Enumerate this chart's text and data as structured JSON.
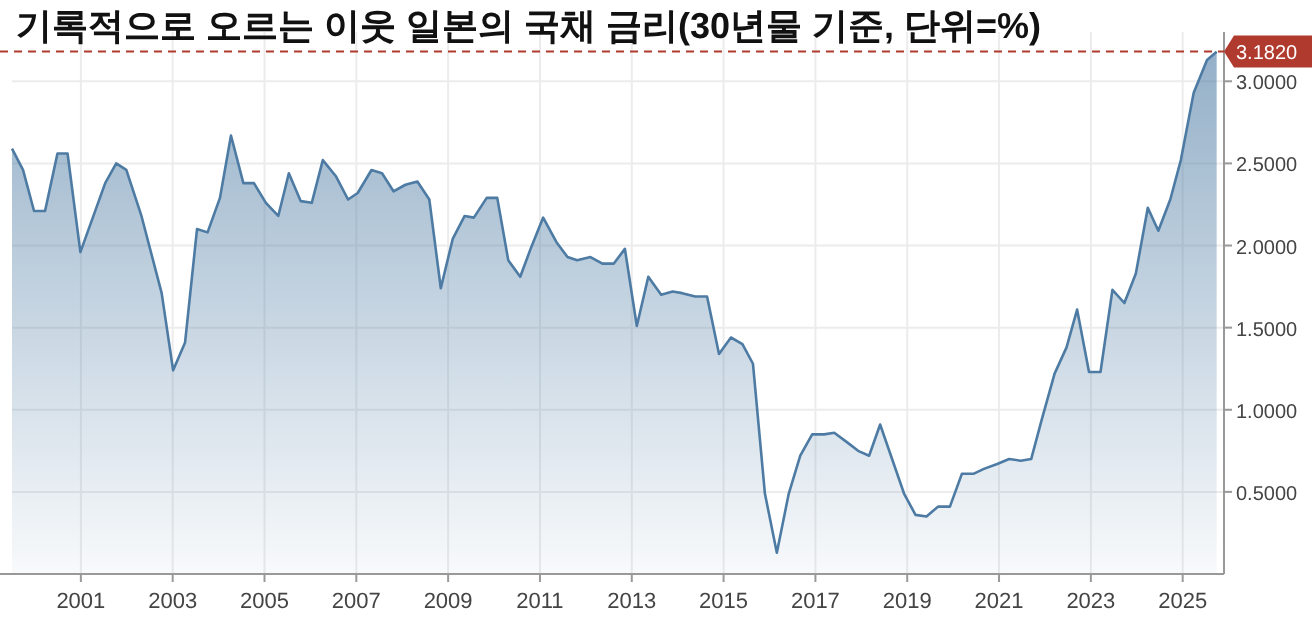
{
  "chart_data": {
    "type": "area",
    "title": "기록적으로 오르는 이웃 일본의 국채 금리(30년물 기준, 단위=%)",
    "x": [
      1999.5,
      1999.74,
      1999.98,
      2000.22,
      2000.49,
      2000.71,
      2000.99,
      2001.53,
      2001.77,
      2001.99,
      2002.32,
      2002.76,
      2003.01,
      2003.27,
      2003.53,
      2003.76,
      2004.03,
      2004.27,
      2004.54,
      2004.77,
      2005.03,
      2005.3,
      2005.53,
      2005.79,
      2006.03,
      2006.27,
      2006.56,
      2006.82,
      2007.03,
      2007.33,
      2007.56,
      2007.81,
      2008.07,
      2008.33,
      2008.59,
      2008.84,
      2009.1,
      2009.36,
      2009.56,
      2009.84,
      2010.07,
      2010.31,
      2010.57,
      2010.81,
      2011.07,
      2011.36,
      2011.6,
      2011.81,
      2012.1,
      2012.36,
      2012.61,
      2012.85,
      2013.11,
      2013.36,
      2013.64,
      2013.89,
      2014.1,
      2014.38,
      2014.64,
      2014.9,
      2015.16,
      2015.41,
      2015.64,
      2015.9,
      2016.16,
      2016.42,
      2016.67,
      2016.93,
      2017.19,
      2017.41,
      2017.7,
      2017.93,
      2018.17,
      2018.41,
      2018.67,
      2018.93,
      2019.18,
      2019.42,
      2019.67,
      2019.93,
      2020.19,
      2020.44,
      2020.67,
      2020.96,
      2021.22,
      2021.47,
      2021.7,
      2021.93,
      2022.21,
      2022.47,
      2022.7,
      2022.96,
      2023.21,
      2023.47,
      2023.73,
      2023.98,
      2024.24,
      2024.47,
      2024.73,
      2024.96,
      2025.24,
      2025.53,
      2025.74
    ],
    "series": [
      {
        "color": "#4d7ba3",
        "values": [
          2.59,
          2.46,
          2.21,
          2.21,
          2.56,
          2.56,
          1.96,
          2.38,
          2.5,
          2.46,
          2.18,
          1.71,
          1.24,
          1.41,
          2.1,
          2.08,
          2.29,
          2.67,
          2.38,
          2.38,
          2.26,
          2.18,
          2.44,
          2.27,
          2.26,
          2.52,
          2.42,
          2.28,
          2.32,
          2.46,
          2.44,
          2.33,
          2.37,
          2.39,
          2.28,
          1.74,
          2.04,
          2.18,
          2.17,
          2.29,
          2.29,
          1.91,
          1.81,
          1.99,
          2.17,
          2.02,
          1.93,
          1.91,
          1.93,
          1.89,
          1.89,
          1.98,
          1.51,
          1.81,
          1.7,
          1.72,
          1.71,
          1.69,
          1.69,
          1.34,
          1.44,
          1.4,
          1.28,
          0.49,
          0.13,
          0.49,
          0.72,
          0.85,
          0.85,
          0.86,
          0.8,
          0.75,
          0.72,
          0.91,
          0.7,
          0.49,
          0.36,
          0.35,
          0.41,
          0.41,
          0.61,
          0.61,
          0.64,
          0.67,
          0.7,
          0.69,
          0.7,
          0.94,
          1.22,
          1.38,
          1.61,
          1.23,
          1.23,
          1.73,
          1.65,
          1.83,
          2.23,
          2.09,
          2.28,
          2.52,
          2.93,
          3.13,
          3.18
        ]
      }
    ],
    "xlim": [
      1999.5,
      2025.9
    ],
    "xticks": [
      2001,
      2003,
      2005,
      2007,
      2009,
      2011,
      2013,
      2015,
      2017,
      2019,
      2021,
      2023,
      2025
    ],
    "ylim": [
      0,
      3.3
    ],
    "yticks": [
      {
        "value": 0.5,
        "label": "0.5000"
      },
      {
        "value": 1,
        "label": "1.0000"
      },
      {
        "value": 1.5,
        "label": "1.5000"
      },
      {
        "value": 2,
        "label": "2.0000"
      },
      {
        "value": 2.5,
        "label": "2.5000"
      },
      {
        "value": 3,
        "label": "3.0000"
      }
    ],
    "grid": true,
    "ref_lines": [
      {
        "axis": "y",
        "value": 3.182,
        "label": "3.1820",
        "color": "#b03a2e",
        "line_style": "dashed"
      }
    ]
  }
}
